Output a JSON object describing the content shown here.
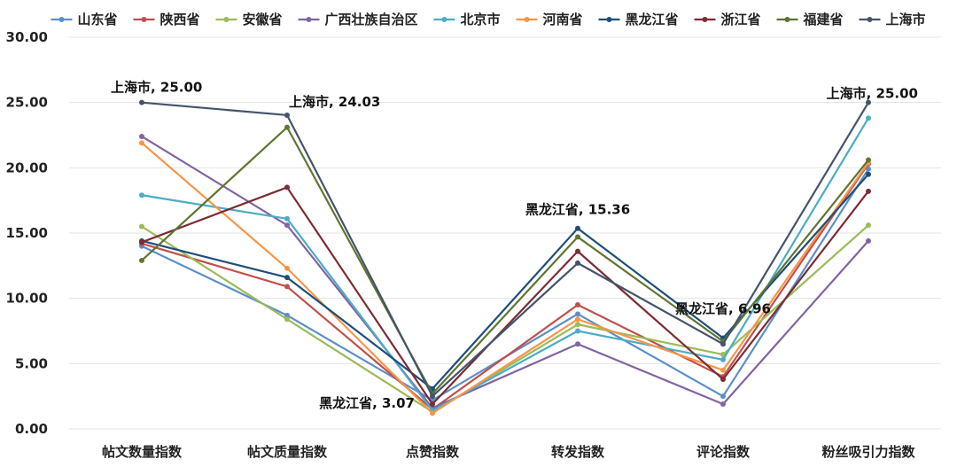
{
  "chart_data": {
    "type": "line",
    "categories": [
      "帖文数量指数",
      "帖文质量指数",
      "点赞指数",
      "转发指数",
      "评论指数",
      "粉丝吸引力指数"
    ],
    "ylim": [
      0,
      30
    ],
    "yticks": [
      "0.00",
      "5.00",
      "10.00",
      "15.00",
      "20.00",
      "25.00",
      "30.00"
    ],
    "grid": true,
    "legend_position": "top",
    "series": [
      {
        "name": "山东省",
        "color": "#5b8fc9",
        "values": [
          14.0,
          8.7,
          2.2,
          8.8,
          2.5,
          19.9
        ]
      },
      {
        "name": "陕西省",
        "color": "#c0504d",
        "values": [
          14.2,
          10.9,
          1.5,
          9.5,
          4.0,
          20.3
        ]
      },
      {
        "name": "安徽省",
        "color": "#9bbb59",
        "values": [
          15.5,
          8.4,
          1.3,
          8.0,
          5.7,
          15.6
        ]
      },
      {
        "name": "广西壮族自治区",
        "color": "#8064a2",
        "values": [
          22.4,
          15.6,
          1.6,
          6.5,
          1.9,
          14.4
        ]
      },
      {
        "name": "北京市",
        "color": "#4bacc6",
        "values": [
          17.9,
          16.1,
          1.4,
          7.5,
          5.3,
          23.8
        ]
      },
      {
        "name": "河南省",
        "color": "#f79646",
        "values": [
          21.9,
          12.3,
          1.2,
          8.4,
          4.5,
          20.4
        ]
      },
      {
        "name": "黑龙江省",
        "color": "#1f4e79",
        "values": [
          14.4,
          11.6,
          3.07,
          15.36,
          6.96,
          19.5
        ]
      },
      {
        "name": "浙江省",
        "color": "#7b2c34",
        "values": [
          14.3,
          18.5,
          1.9,
          13.6,
          3.8,
          18.2
        ]
      },
      {
        "name": "福建省",
        "color": "#5f7530",
        "values": [
          12.9,
          23.1,
          2.7,
          14.7,
          6.7,
          20.6
        ]
      },
      {
        "name": "上海市",
        "color": "#44546a",
        "values": [
          25.0,
          24.03,
          2.5,
          12.7,
          6.5,
          25.0
        ]
      }
    ],
    "annotations": [
      {
        "text": "上海市, 25.00",
        "series": 9,
        "index": 0,
        "anchor": "start",
        "dx": -35,
        "dy": -12
      },
      {
        "text": "上海市, 24.03",
        "series": 9,
        "index": 1,
        "anchor": "start",
        "dx": 2,
        "dy": -10
      },
      {
        "text": "黑龙江省, 3.07",
        "series": 6,
        "index": 2,
        "anchor": "end",
        "dx": -20,
        "dy": 21
      },
      {
        "text": "黑龙江省, 15.36",
        "series": 6,
        "index": 3,
        "anchor": "middle",
        "dx": 0,
        "dy": -16
      },
      {
        "text": "黑龙江省, 6.96",
        "series": 6,
        "index": 4,
        "anchor": "middle",
        "dx": 0,
        "dy": -28
      },
      {
        "text": "上海市, 25.00",
        "series": 9,
        "index": 5,
        "anchor": "end",
        "dx": 56,
        "dy": -5
      }
    ]
  }
}
